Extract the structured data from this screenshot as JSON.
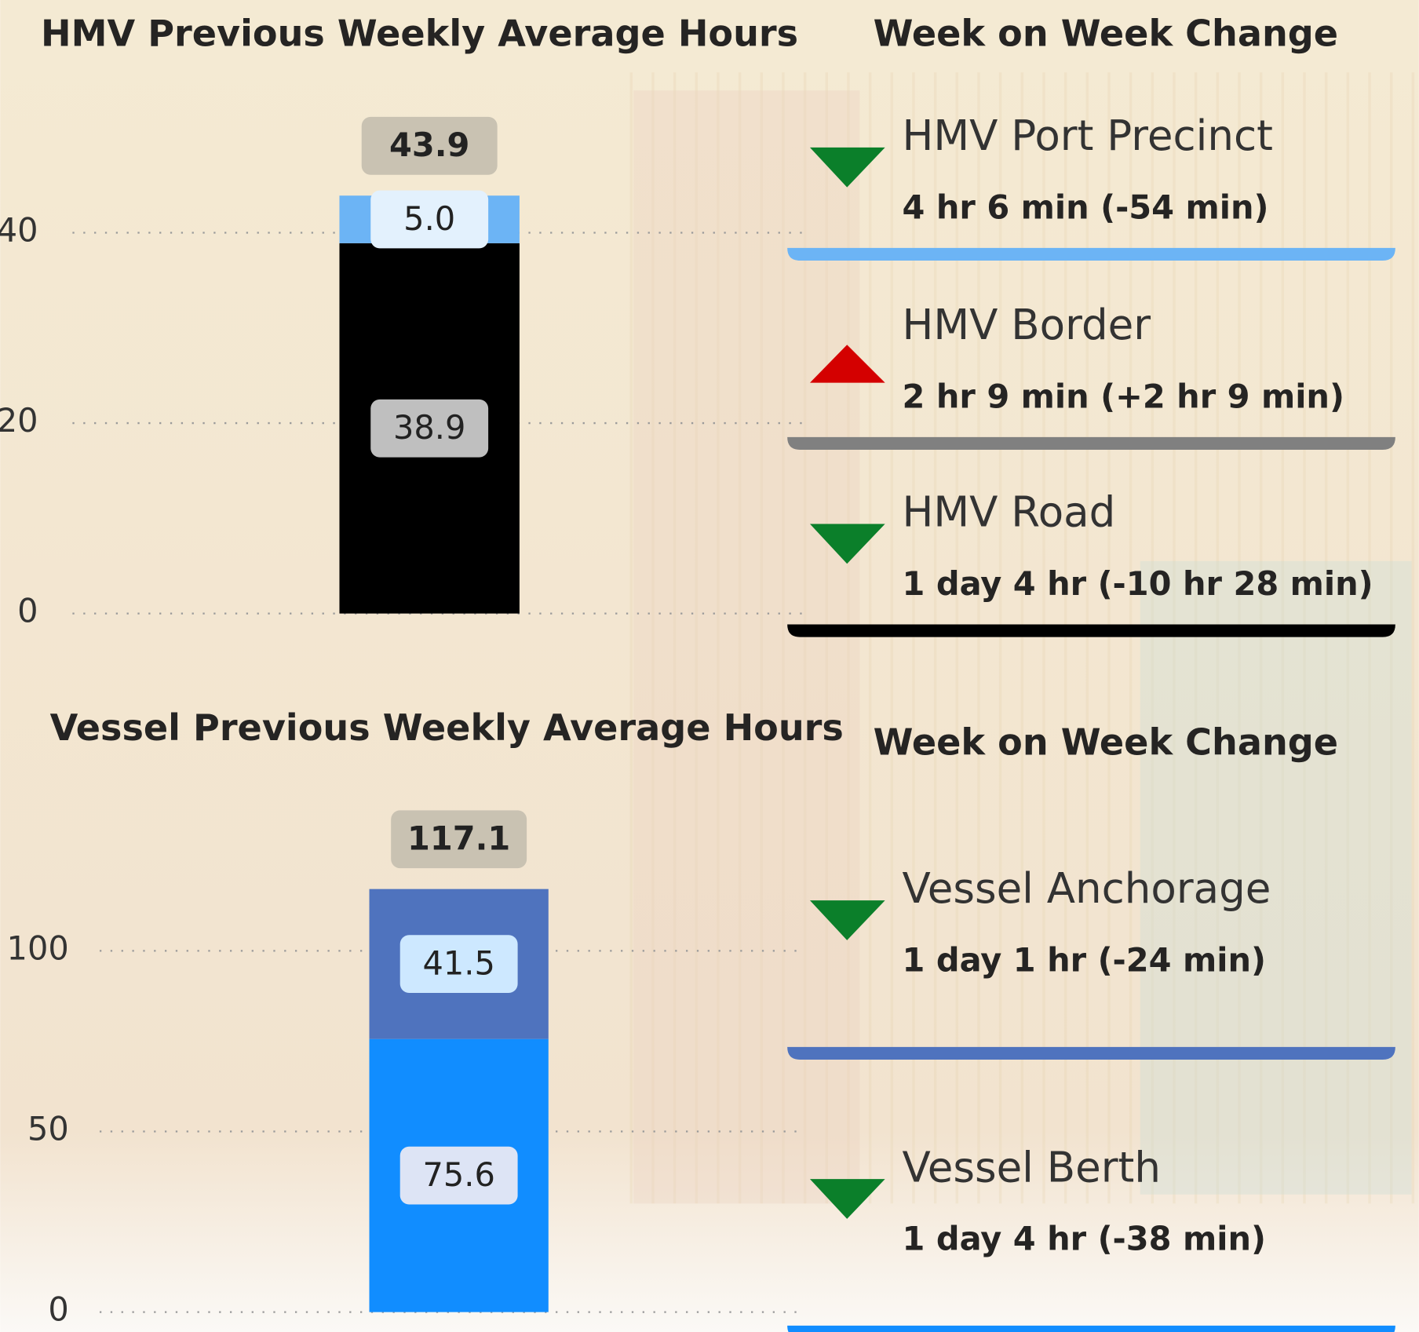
{
  "chart_data": [
    {
      "type": "bar",
      "stacked": true,
      "title": "HMV Previous Weekly Average Hours",
      "ylim": [
        0,
        50
      ],
      "yticks": [
        0,
        20,
        40
      ],
      "grid": true,
      "series": [
        {
          "color": "#000000",
          "values": [
            38.9
          ]
        },
        {
          "color": "#6cb4f5",
          "values": [
            5.0
          ],
          "value_labels": [
            "5.0"
          ]
        }
      ],
      "totals": [
        43.9
      ]
    },
    {
      "type": "bar",
      "stacked": true,
      "title": "Vessel Previous Weekly Average Hours",
      "ylim": [
        0,
        135
      ],
      "yticks": [
        0,
        50,
        100
      ],
      "grid": true,
      "series": [
        {
          "color": "#118dff",
          "values": [
            75.6
          ]
        },
        {
          "color": "#4f73be",
          "values": [
            41.5
          ]
        }
      ],
      "totals": [
        117.1
      ]
    }
  ],
  "panels": [
    {
      "title": "Week on Week Change",
      "items": [
        {
          "label": "HMV Port Precinct",
          "value": "4 hr 6 min (-54 min)",
          "direction": "down",
          "arrow_color": "#0b7f2a",
          "line_color": "#6cb4f5"
        },
        {
          "label": "HMV Border",
          "value": "2 hr 9 min (+2 hr 9 min)",
          "direction": "up",
          "arrow_color": "#d40000",
          "line_color": "#808080"
        },
        {
          "label": "HMV Road",
          "value": "1 day 4 hr (-10 hr 28 min)",
          "direction": "down",
          "arrow_color": "#0b7f2a",
          "line_color": "#000000"
        }
      ]
    },
    {
      "title": "Week on Week Change",
      "items": [
        {
          "label": "Vessel Anchorage",
          "value": "1 day 1 hr (-24 min)",
          "direction": "down",
          "arrow_color": "#0b7f2a",
          "line_color": "#4f73be"
        },
        {
          "label": "Vessel Berth",
          "value": "1 day 4 hr (-38 min)",
          "direction": "down",
          "arrow_color": "#0b7f2a",
          "line_color": "#118dff"
        }
      ]
    }
  ]
}
